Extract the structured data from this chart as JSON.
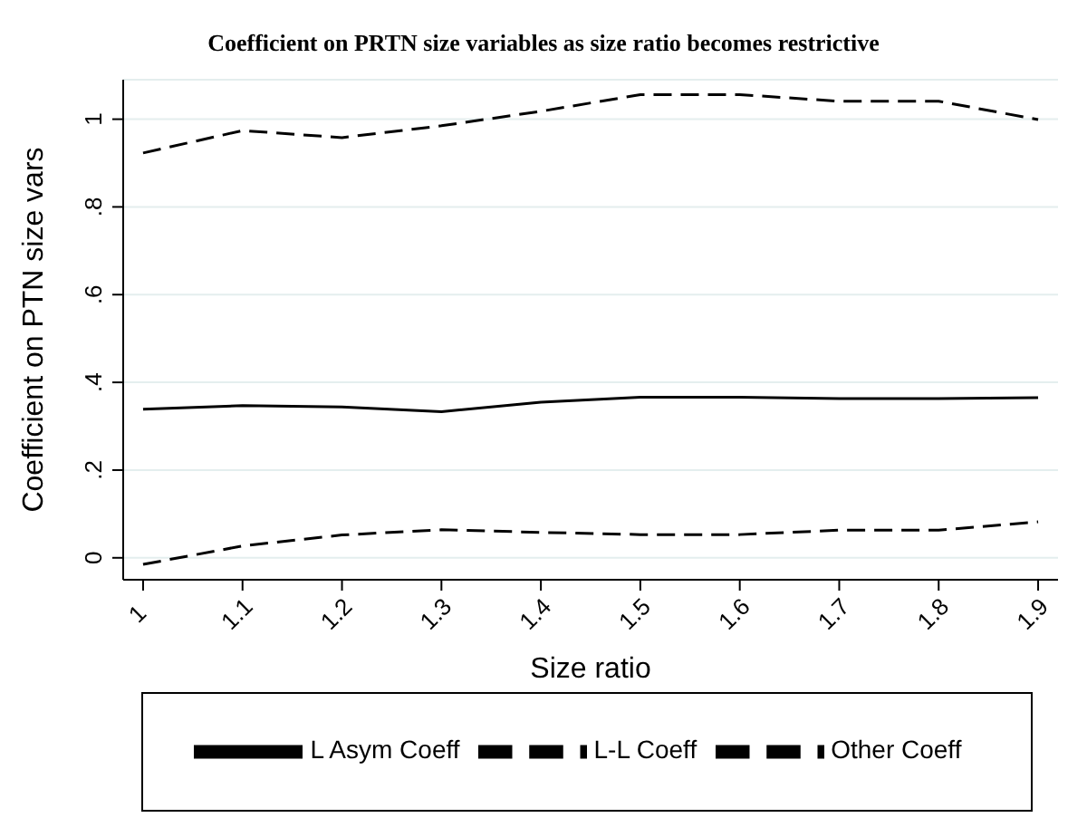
{
  "chart_data": {
    "type": "line",
    "title": "Coefficient on PRTN size variables as size ratio becomes restrictive",
    "xlabel": "Size ratio",
    "ylabel": "Coefficient on PTN size vars",
    "x": [
      1,
      1.1,
      1.2,
      1.3,
      1.4,
      1.5,
      1.6,
      1.7,
      1.8,
      1.9
    ],
    "series": [
      {
        "name": "L-L Coeff",
        "color": "#000000",
        "line_style": "dashed",
        "values": [
          0.923,
          0.974,
          0.958,
          0.985,
          1.018,
          1.056,
          1.056,
          1.041,
          1.041,
          0.999
        ]
      },
      {
        "name": "L Asym Coeff",
        "color": "#000000",
        "line_style": "solid",
        "values": [
          0.339,
          0.347,
          0.344,
          0.333,
          0.355,
          0.366,
          0.366,
          0.363,
          0.363,
          0.365
        ]
      },
      {
        "name": "Other Coeff",
        "color": "#000000",
        "line_style": "dashed",
        "values": [
          -0.015,
          0.027,
          0.052,
          0.064,
          0.058,
          0.053,
          0.053,
          0.063,
          0.063,
          0.082
        ]
      }
    ],
    "xlim": [
      0.98,
      1.92
    ],
    "xticks": [
      1,
      1.1,
      1.2,
      1.3,
      1.4,
      1.5,
      1.6,
      1.7,
      1.8,
      1.9
    ],
    "ylim": [
      -0.05,
      1.09
    ],
    "yticks": [
      {
        "value": 0,
        "label": "0"
      },
      {
        "value": 0.2,
        "label": ".2"
      },
      {
        "value": 0.4,
        "label": ".4"
      },
      {
        "value": 0.6,
        "label": ".6"
      },
      {
        "value": 0.8,
        "label": ".8"
      },
      {
        "value": 1,
        "label": "1"
      }
    ],
    "grid": "y",
    "legend": "bottom",
    "marker": "none"
  }
}
